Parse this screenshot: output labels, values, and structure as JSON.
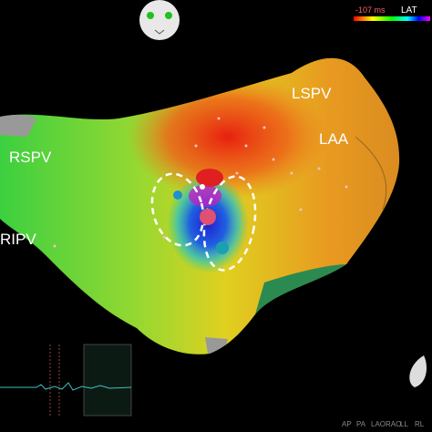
{
  "colorbar": {
    "min_label": "-107 ms",
    "title": "LAT"
  },
  "labels": {
    "lspv": "LSPV",
    "laa": "LAA",
    "rspv": "RSPV",
    "ripv": "RIPV"
  },
  "view_buttons": [
    "AP",
    "PA",
    "LAO",
    "RAO",
    "LL",
    "RL"
  ]
}
